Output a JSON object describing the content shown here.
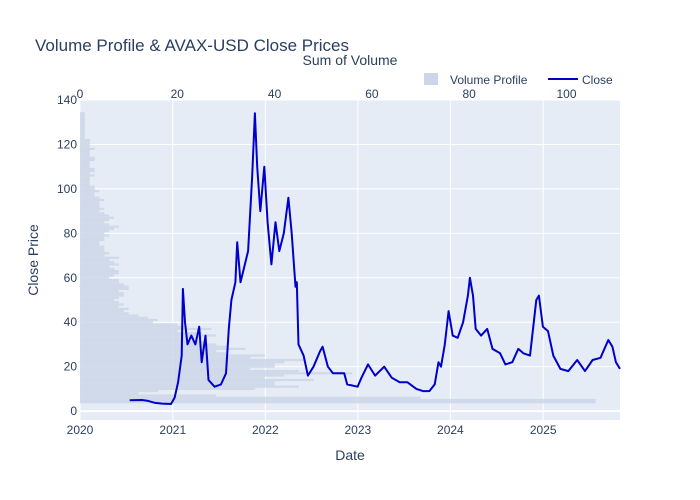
{
  "chart_data": {
    "type": "line",
    "title": "Volume Profile & AVAX-USD Close Prices",
    "xlabel": "Date",
    "ylabel": "Close Price",
    "x2label": "Sum of Volume",
    "x_ticks": [
      "2020",
      "2021",
      "2022",
      "2023",
      "2024",
      "2025"
    ],
    "x_range": [
      "2020-01-01",
      "2025-10-31"
    ],
    "y_ticks": [
      0,
      20,
      40,
      60,
      80,
      100,
      120,
      140
    ],
    "ylim": [
      -4,
      140
    ],
    "x2_ticks": [
      0,
      20,
      40,
      60,
      80,
      100
    ],
    "x2_range": [
      0,
      111
    ],
    "grid": true,
    "legend_position": "top-right",
    "legend": [
      {
        "name": "Volume Profile",
        "color": "#ccd6e6"
      },
      {
        "name": "Close",
        "color": "#0000cc"
      }
    ],
    "colors": {
      "plot_bg": "#e5ecf6",
      "line": "#0000cc",
      "bars": "#ccd6e6"
    },
    "series": [
      {
        "name": "Close",
        "points": [
          [
            "2020-07-15",
            4.9
          ],
          [
            "2020-09-01",
            5.0
          ],
          [
            "2020-09-22",
            4.7
          ],
          [
            "2020-10-20",
            3.8
          ],
          [
            "2020-11-20",
            3.4
          ],
          [
            "2020-12-25",
            3.2
          ],
          [
            "2021-01-08",
            6
          ],
          [
            "2021-01-22",
            13
          ],
          [
            "2021-02-05",
            25
          ],
          [
            "2021-02-10",
            55
          ],
          [
            "2021-02-18",
            40
          ],
          [
            "2021-02-28",
            30
          ],
          [
            "2021-03-15",
            34
          ],
          [
            "2021-03-31",
            30
          ],
          [
            "2021-04-15",
            38
          ],
          [
            "2021-04-25",
            22
          ],
          [
            "2021-05-10",
            34
          ],
          [
            "2021-05-22",
            14
          ],
          [
            "2021-06-15",
            11
          ],
          [
            "2021-07-10",
            12
          ],
          [
            "2021-07-30",
            17
          ],
          [
            "2021-08-10",
            37
          ],
          [
            "2021-08-20",
            50
          ],
          [
            "2021-09-05",
            58
          ],
          [
            "2021-09-12",
            76
          ],
          [
            "2021-09-25",
            58
          ],
          [
            "2021-10-10",
            65
          ],
          [
            "2021-10-25",
            72
          ],
          [
            "2021-11-10",
            105
          ],
          [
            "2021-11-21",
            134
          ],
          [
            "2021-11-30",
            110
          ],
          [
            "2021-12-12",
            90
          ],
          [
            "2021-12-28",
            110
          ],
          [
            "2022-01-10",
            85
          ],
          [
            "2022-01-25",
            66
          ],
          [
            "2022-02-10",
            85
          ],
          [
            "2022-02-25",
            72
          ],
          [
            "2022-03-15",
            80
          ],
          [
            "2022-04-02",
            96
          ],
          [
            "2022-04-15",
            80
          ],
          [
            "2022-04-30",
            56
          ],
          [
            "2022-05-05",
            58
          ],
          [
            "2022-05-12",
            30
          ],
          [
            "2022-06-01",
            25
          ],
          [
            "2022-06-18",
            16
          ],
          [
            "2022-07-10",
            20
          ],
          [
            "2022-08-05",
            27
          ],
          [
            "2022-08-15",
            29
          ],
          [
            "2022-09-05",
            20
          ],
          [
            "2022-09-25",
            17
          ],
          [
            "2022-10-15",
            17
          ],
          [
            "2022-11-08",
            17
          ],
          [
            "2022-11-20",
            12
          ],
          [
            "2022-12-31",
            11
          ],
          [
            "2023-01-15",
            15
          ],
          [
            "2023-02-10",
            21
          ],
          [
            "2023-03-10",
            16
          ],
          [
            "2023-04-15",
            20
          ],
          [
            "2023-05-15",
            15
          ],
          [
            "2023-06-15",
            13
          ],
          [
            "2023-07-15",
            13
          ],
          [
            "2023-08-20",
            10
          ],
          [
            "2023-09-15",
            9
          ],
          [
            "2023-10-10",
            9
          ],
          [
            "2023-10-31",
            12
          ],
          [
            "2023-11-15",
            22
          ],
          [
            "2023-11-25",
            20
          ],
          [
            "2023-12-10",
            30
          ],
          [
            "2023-12-25",
            45
          ],
          [
            "2024-01-10",
            34
          ],
          [
            "2024-01-30",
            33
          ],
          [
            "2024-02-20",
            40
          ],
          [
            "2024-03-10",
            52
          ],
          [
            "2024-03-18",
            60
          ],
          [
            "2024-03-30",
            52
          ],
          [
            "2024-04-10",
            37
          ],
          [
            "2024-05-01",
            34
          ],
          [
            "2024-05-25",
            37
          ],
          [
            "2024-06-15",
            28
          ],
          [
            "2024-07-15",
            26
          ],
          [
            "2024-08-05",
            21
          ],
          [
            "2024-09-01",
            22
          ],
          [
            "2024-09-25",
            28
          ],
          [
            "2024-10-15",
            26
          ],
          [
            "2024-11-10",
            25
          ],
          [
            "2024-12-05",
            50
          ],
          [
            "2024-12-15",
            52
          ],
          [
            "2024-12-31",
            38
          ],
          [
            "2025-01-20",
            36
          ],
          [
            "2025-02-10",
            25
          ],
          [
            "2025-03-10",
            19
          ],
          [
            "2025-04-10",
            18
          ],
          [
            "2025-05-15",
            23
          ],
          [
            "2025-06-15",
            18
          ],
          [
            "2025-07-15",
            23
          ],
          [
            "2025-08-15",
            24
          ],
          [
            "2025-09-15",
            32
          ],
          [
            "2025-10-01",
            29
          ],
          [
            "2025-10-15",
            22
          ],
          [
            "2025-10-31",
            19
          ]
        ]
      },
      {
        "name": "Volume Profile",
        "orientation": "horizontal",
        "bars": [
          [
            4,
            106
          ],
          [
            5,
            106
          ],
          [
            6,
            70
          ],
          [
            7,
            28
          ],
          [
            8,
            12
          ],
          [
            9,
            16
          ],
          [
            10,
            36
          ],
          [
            11,
            45
          ],
          [
            12,
            40
          ],
          [
            13,
            40
          ],
          [
            14,
            48
          ],
          [
            15,
            38
          ],
          [
            16,
            42
          ],
          [
            17,
            56
          ],
          [
            18,
            45
          ],
          [
            19,
            35
          ],
          [
            20,
            40
          ],
          [
            21,
            40
          ],
          [
            22,
            42
          ],
          [
            23,
            46
          ],
          [
            24,
            35
          ],
          [
            25,
            38
          ],
          [
            26,
            30
          ],
          [
            27,
            28
          ],
          [
            28,
            34
          ],
          [
            29,
            30
          ],
          [
            30,
            28
          ],
          [
            31,
            26
          ],
          [
            32,
            22
          ],
          [
            33,
            25
          ],
          [
            34,
            28
          ],
          [
            35,
            25
          ],
          [
            36,
            20
          ],
          [
            37,
            27
          ],
          [
            38,
            22
          ],
          [
            39,
            20
          ],
          [
            40,
            15
          ],
          [
            41,
            16
          ],
          [
            42,
            14
          ],
          [
            43,
            12
          ],
          [
            44,
            10
          ],
          [
            45,
            9
          ],
          [
            46,
            10
          ],
          [
            47,
            8
          ],
          [
            48,
            9
          ],
          [
            49,
            8
          ],
          [
            50,
            7
          ],
          [
            51,
            8
          ],
          [
            52,
            9
          ],
          [
            53,
            9
          ],
          [
            54,
            8
          ],
          [
            55,
            10
          ],
          [
            56,
            10
          ],
          [
            57,
            9
          ],
          [
            58,
            8
          ],
          [
            59,
            8
          ],
          [
            60,
            6
          ],
          [
            61,
            7
          ],
          [
            62,
            8
          ],
          [
            63,
            8
          ],
          [
            64,
            7
          ],
          [
            65,
            6
          ],
          [
            66,
            8
          ],
          [
            67,
            7
          ],
          [
            68,
            6
          ],
          [
            69,
            8
          ],
          [
            70,
            5
          ],
          [
            71,
            6
          ],
          [
            72,
            5
          ],
          [
            73,
            5
          ],
          [
            74,
            5
          ],
          [
            75,
            4
          ],
          [
            76,
            4
          ],
          [
            77,
            5
          ],
          [
            78,
            5
          ],
          [
            79,
            6
          ],
          [
            80,
            5
          ],
          [
            81,
            6
          ],
          [
            82,
            7
          ],
          [
            83,
            8
          ],
          [
            84,
            6
          ],
          [
            85,
            5
          ],
          [
            86,
            6
          ],
          [
            87,
            7
          ],
          [
            88,
            6
          ],
          [
            89,
            5
          ],
          [
            90,
            4
          ],
          [
            91,
            5
          ],
          [
            92,
            4
          ],
          [
            93,
            4
          ],
          [
            94,
            4
          ],
          [
            95,
            5
          ],
          [
            96,
            4
          ],
          [
            97,
            3
          ],
          [
            98,
            3
          ],
          [
            99,
            4
          ],
          [
            100,
            3
          ],
          [
            101,
            3
          ],
          [
            102,
            2
          ],
          [
            103,
            2
          ],
          [
            104,
            2
          ],
          [
            105,
            2
          ],
          [
            106,
            3
          ],
          [
            107,
            2
          ],
          [
            108,
            3
          ],
          [
            109,
            3
          ],
          [
            110,
            2
          ],
          [
            111,
            2
          ],
          [
            112,
            2
          ],
          [
            113,
            3
          ],
          [
            114,
            3
          ],
          [
            115,
            2
          ],
          [
            116,
            2
          ],
          [
            117,
            2
          ],
          [
            118,
            3
          ],
          [
            119,
            2
          ],
          [
            120,
            2
          ],
          [
            121,
            2
          ],
          [
            122,
            2
          ],
          [
            123,
            1
          ],
          [
            124,
            1
          ],
          [
            125,
            1
          ],
          [
            126,
            1
          ],
          [
            127,
            1
          ],
          [
            128,
            1
          ],
          [
            129,
            1
          ],
          [
            130,
            1
          ],
          [
            131,
            1
          ],
          [
            132,
            1
          ],
          [
            133,
            1
          ],
          [
            134,
            1
          ]
        ]
      }
    ]
  }
}
